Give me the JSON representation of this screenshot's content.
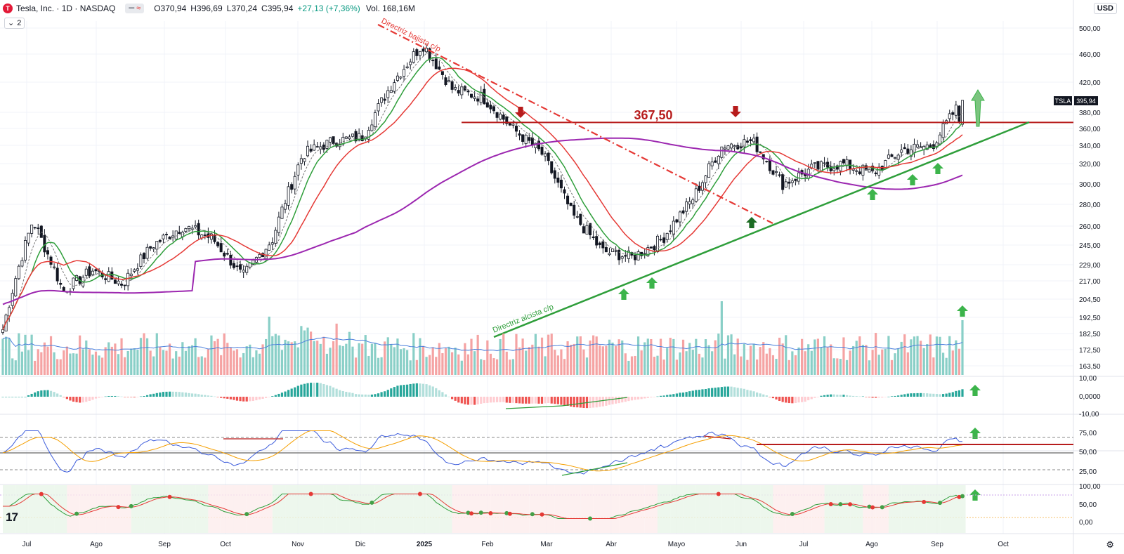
{
  "header": {
    "logo_letter": "T",
    "title": "Tesla, Inc. · 1D · NASDAQ",
    "badge_a": "═",
    "badge_b": "≈",
    "open": "O370,94",
    "high": "H396,69",
    "low": "L370,24",
    "close": "C395,94",
    "change": "+27,13 (+7,36%)",
    "volume": "Vol. 168,16M",
    "collapse_icon": "⌄",
    "collapse_count": "2"
  },
  "currency": "USD",
  "tv_logo": "17",
  "settings_icon": "⚙",
  "chart_data": {
    "type": "candlestick",
    "symbol": "TSLA",
    "last_price": "395,94",
    "x_labels": [
      "Jul",
      "Ago",
      "Sep",
      "Oct",
      "Nov",
      "Dic",
      "2025",
      "Feb",
      "Mar",
      "Abr",
      "Mayo",
      "Jun",
      "Jul",
      "Ago",
      "Sep",
      "Oct"
    ],
    "price_ticks": [
      "500,00",
      "460,00",
      "420,00",
      "380,00",
      "360,00",
      "340,00",
      "320,00",
      "300,00",
      "280,00",
      "260,00",
      "245,00",
      "229,00",
      "217,00",
      "204,50",
      "192,50",
      "182,50",
      "172,50",
      "163,50"
    ],
    "price_range": [
      163.5,
      500
    ],
    "resistance_level": 367.5,
    "resistance_label": "367,50",
    "downtrend_label": "Directriz bajista c/p",
    "uptrend_label": "Directriz alcista c/p",
    "price_series_approx": [
      [
        "Jul",
        185
      ],
      [
        "Jul",
        265
      ],
      [
        "Ago",
        210
      ],
      [
        "Ago",
        225
      ],
      [
        "Sep",
        215
      ],
      [
        "Sep",
        245
      ],
      [
        "Oct",
        260
      ],
      [
        "Oct",
        250
      ],
      [
        "Oct",
        220
      ],
      [
        "Nov",
        250
      ],
      [
        "Nov",
        330
      ],
      [
        "Nov",
        345
      ],
      [
        "Dic",
        350
      ],
      [
        "Dic",
        420
      ],
      [
        "Dic",
        475
      ],
      [
        "2025",
        410
      ],
      [
        "2025",
        400
      ],
      [
        "Feb",
        360
      ],
      [
        "Feb",
        330
      ],
      [
        "Mar",
        270
      ],
      [
        "Mar",
        240
      ],
      [
        "Abr",
        235
      ],
      [
        "Abr",
        250
      ],
      [
        "Mayo",
        285
      ],
      [
        "Mayo",
        340
      ],
      [
        "Jun",
        345
      ],
      [
        "Jun",
        300
      ],
      [
        "Jul",
        315
      ],
      [
        "Jul",
        320
      ],
      [
        "Ago",
        310
      ],
      [
        "Ago",
        335
      ],
      [
        "Sep",
        340
      ],
      [
        "Sep",
        396
      ]
    ],
    "indicators": [
      {
        "name": "SMA short",
        "color": "#2e9e3a"
      },
      {
        "name": "SMA medium",
        "color": "#e53935"
      },
      {
        "name": "SMA 200",
        "color": "#9c27b0"
      }
    ],
    "volume_panel": {
      "ticks": []
    },
    "macd_panel": {
      "ticks": [
        "10,00",
        "0,0000",
        "-10,00"
      ]
    },
    "rsi_panel": {
      "ticks": [
        "75,00",
        "50,00",
        "25,00"
      ]
    },
    "stoch_panel": {
      "ticks": [
        "100,00",
        "50,00",
        "0,00"
      ]
    }
  },
  "colors": {
    "up": "#26a69a",
    "down": "#ef5350",
    "vol_up": "#89cfc7",
    "vol_down": "#f5a3a3",
    "resistance": "#b71c1c",
    "uptrend": "#2e9e3a",
    "downtrend": "#e53935"
  }
}
